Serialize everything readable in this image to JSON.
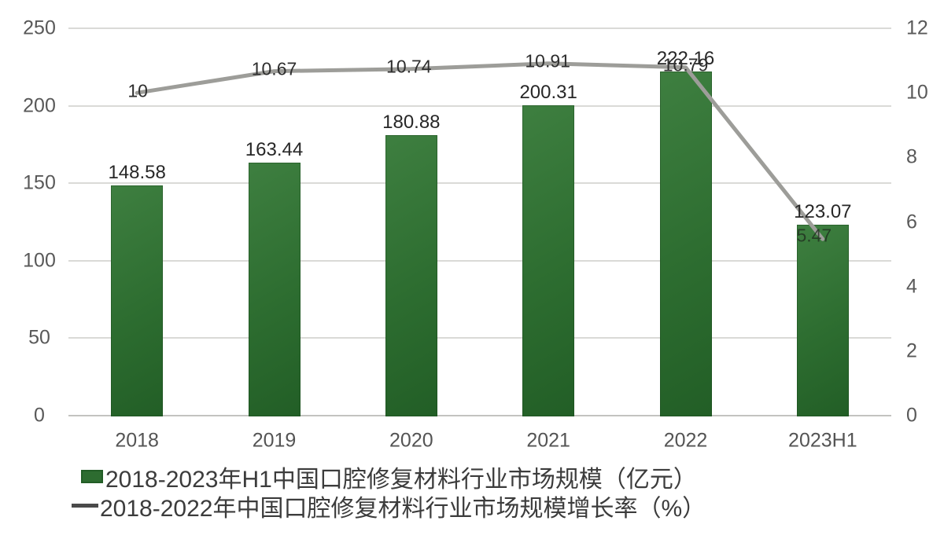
{
  "chart_data": {
    "type": "bar",
    "combo": "bar+line",
    "categories": [
      "2018",
      "2019",
      "2020",
      "2021",
      "2022",
      "2023H1"
    ],
    "series": [
      {
        "name": "2018-2023年H1中国口腔修复材料行业市场规模（亿元）",
        "type": "bar",
        "axis": "left",
        "color": "#2d6c30",
        "values": [
          148.58,
          163.44,
          180.88,
          200.31,
          222.16,
          123.07
        ],
        "labels": [
          "148.58",
          "163.44",
          "180.88",
          "200.31",
          "222.16",
          "123.07"
        ]
      },
      {
        "name": "2018-2022年中国口腔修复材料行业市场规模增长率（%）",
        "type": "line",
        "axis": "right",
        "color": "#9d9d99",
        "values": [
          10,
          10.67,
          10.74,
          10.91,
          10.79,
          5.47
        ],
        "labels": [
          "10",
          "10.67",
          "10.74",
          "10.91",
          "10.79",
          "5.47"
        ]
      }
    ],
    "left_axis": {
      "min": 0,
      "max": 250,
      "ticks": [
        "0",
        "50",
        "100",
        "150",
        "200",
        "250"
      ]
    },
    "right_axis": {
      "min": 0,
      "max": 12,
      "ticks": [
        "0",
        "2",
        "4",
        "6",
        "8",
        "10",
        "12"
      ]
    },
    "grid": true,
    "legend_position": "bottom-left",
    "title": ""
  },
  "legend": {
    "bar_label": "2018-2023年H1中国口腔修复材料行业市场规模（亿元）",
    "line_label": "2018-2022年中国口腔修复材料行业市场规模增长率（%）"
  },
  "colors": {
    "bar_fill": "#2d6c30",
    "line_stroke": "#9d9d99",
    "gridline": "#dadad7",
    "axis_line": "#c3c3c0",
    "tick_text": "#595959",
    "data_label_text": "#272727",
    "legend_text": "#3c3c3c",
    "background": "#ffffff"
  }
}
